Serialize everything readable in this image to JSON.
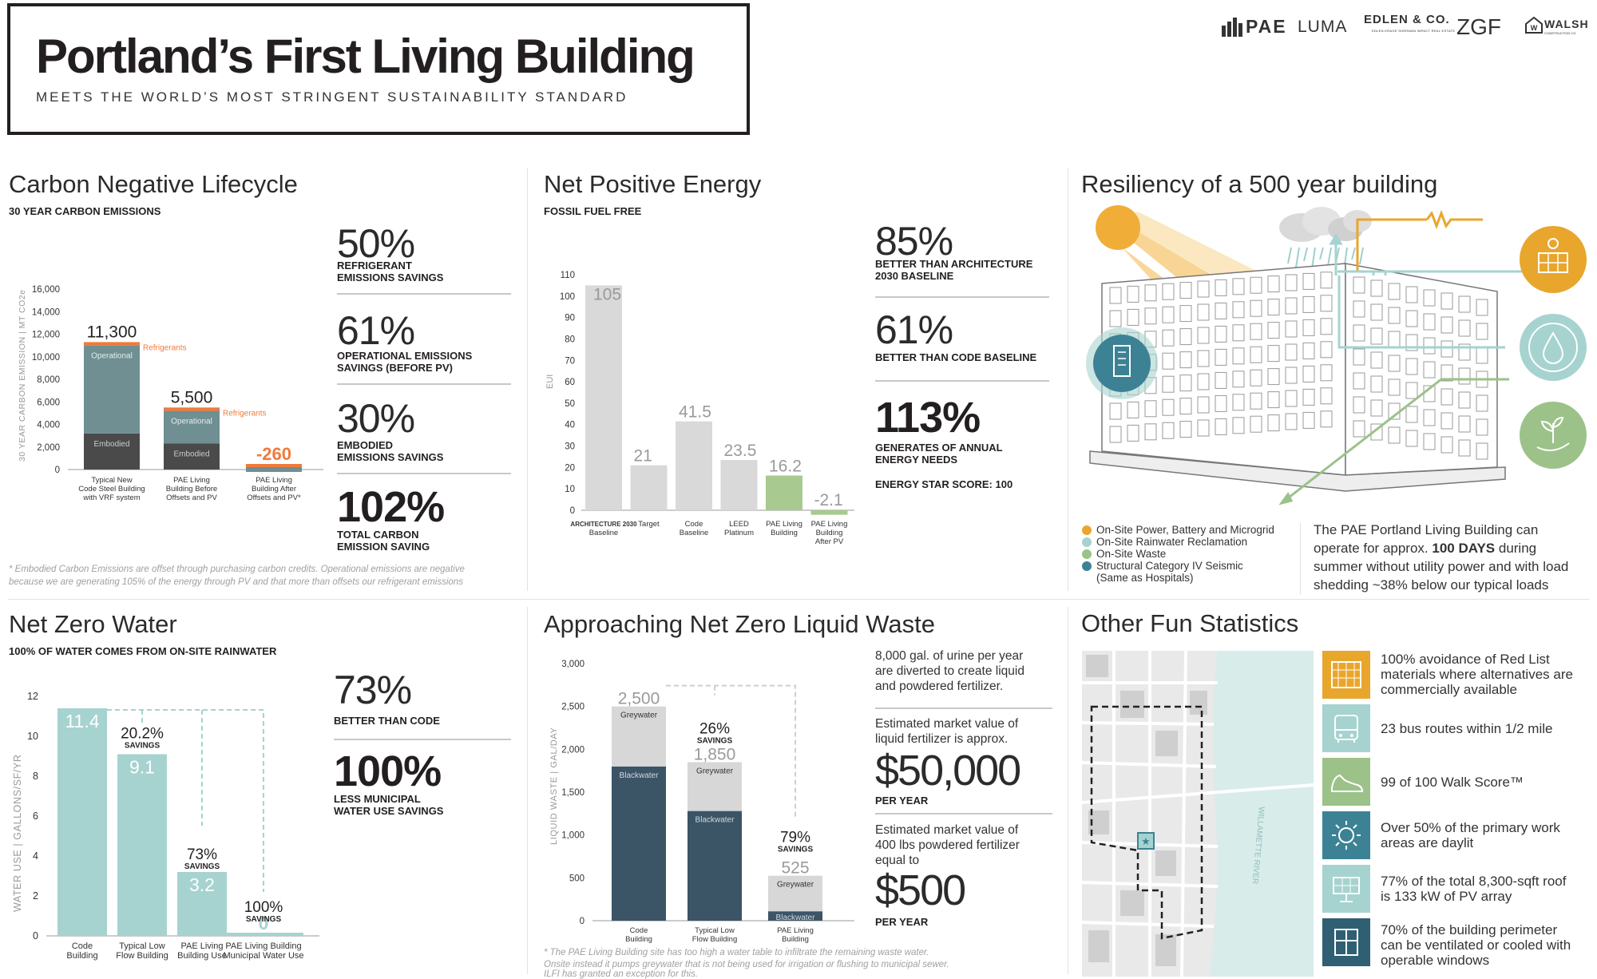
{
  "header": {
    "title": "Portland’s First Living Building",
    "subtitle": "MEETS THE WORLD’S MOST STRINGENT SUSTAINABILITY STANDARD",
    "logos": [
      "PAE",
      "LUMA",
      "EDLEN & CO.",
      "EDLEN KRAGE SHERMAN IMPACT REAL ESTATE",
      "ZGF",
      "WALSH",
      "CONSTRUCTION CO."
    ]
  },
  "carbon": {
    "title": "Carbon Negative Lifecycle",
    "subtitle": "30 YEAR CARBON EMISSIONS",
    "stats": [
      {
        "value": "50%",
        "label": [
          "REFRIGERANT",
          "EMISSIONS SAVINGS"
        ]
      },
      {
        "value": "61%",
        "label": [
          "OPERATIONAL EMISSIONS",
          "SAVINGS (BEFORE PV)"
        ]
      },
      {
        "value": "30%",
        "label": [
          "EMBODIED",
          "EMISSIONS SAVINGS"
        ]
      },
      {
        "value": "102%",
        "label": [
          "TOTAL CARBON",
          "EMISSION SAVING"
        ]
      }
    ],
    "note": [
      "* Embodied Carbon Emissions are offset through purchasing carbon credits. Operational emissions are negative",
      "because we are generating 105% of the energy through PV and that more than offsets our refrigerant emissions"
    ]
  },
  "energy": {
    "title": "Net Positive Energy",
    "subtitle": "FOSSIL FUEL FREE",
    "stats": [
      {
        "value": "85%",
        "label": [
          "BETTER THAN ARCHITECTURE",
          "2030 BASELINE"
        ]
      },
      {
        "value": "61%",
        "label": [
          "BETTER THAN CODE BASELINE"
        ]
      },
      {
        "value": "113%",
        "label": [
          "GENERATES OF ANNUAL",
          "ENERGY NEEDS"
        ]
      }
    ],
    "extra": "ENERGY STAR SCORE: 100"
  },
  "resiliency": {
    "title": "Resiliency of a 500 year building",
    "legend": [
      {
        "label": "On-Site Power, Battery and Microgrid",
        "color": "#e8a62d"
      },
      {
        "label": "On-Site Rainwater Reclamation",
        "color": "#a6d3cf"
      },
      {
        "label": "On-Site Waste",
        "color": "#9cc28a"
      },
      {
        "label": "Structural Category IV Seismic",
        "label2": "(Same as Hospitals)",
        "color": "#3c8294"
      }
    ],
    "paragraph": [
      "The PAE Portland Living Building can",
      "operate for approx. ",
      "100 DAYS",
      " during",
      "summer without utility power and with load",
      "shedding ~38% below our typical loads"
    ]
  },
  "water": {
    "title": "Net Zero Water",
    "subtitle": "100% OF WATER COMES FROM ON-SITE RAINWATER",
    "stats": [
      {
        "value": "73%",
        "label": [
          "BETTER THAN CODE"
        ]
      },
      {
        "value": "100%",
        "label": [
          "LESS MUNICIPAL",
          "WATER USE SAVINGS"
        ]
      }
    ]
  },
  "waste": {
    "title": "Approaching Net Zero Liquid Waste",
    "side": [
      {
        "text": [
          "8,000 gal. of urine per year",
          "are diverted to create liquid",
          "and powdered fertilizer."
        ]
      },
      {
        "text": [
          "Estimated market value of",
          "liquid fertilizer is approx."
        ],
        "money": "$50,000",
        "per": "PER YEAR"
      },
      {
        "text": [
          "Estimated market value of",
          "400 lbs powdered fertilizer",
          "equal to"
        ],
        "money": "$500",
        "per": "PER YEAR"
      }
    ],
    "note": [
      "* The PAE Living Building site has too high a water table to infiltrate the remaining waste water.",
      "Onsite instead it pumps greywater that is not being used for irrigation or flushing to municipal sewer.",
      "ILFI has granted an exception for this."
    ]
  },
  "fun": {
    "title": "Other Fun Statistics",
    "river_label": "WILLAMETTE RIVER",
    "items": [
      {
        "icon": "building-grid-icon",
        "color": "#e8a62d",
        "text": [
          "100% avoidance of Red List",
          "materials where alternatives are",
          "commercially available"
        ]
      },
      {
        "icon": "bus-icon",
        "color": "#a6d3cf",
        "text": [
          "23 bus routes within 1/2 mile"
        ]
      },
      {
        "icon": "shoe-icon",
        "color": "#9cc28a",
        "text": [
          "99 of 100 Walk Score™"
        ]
      },
      {
        "icon": "sun-icon",
        "color": "#3c8294",
        "text": [
          "Over 50% of the primary work",
          "areas are daylit"
        ]
      },
      {
        "icon": "solar-panel-icon",
        "color": "#a6d3cf",
        "text": [
          "77% of the total 8,300-sqft roof",
          "is 133 kW of PV array"
        ]
      },
      {
        "icon": "window-icon",
        "color": "#2f5f73",
        "text": [
          "70% of the building perimeter",
          "can be ventilated or cooled with",
          "operable windows"
        ]
      }
    ]
  },
  "chart_data": [
    {
      "type": "bar",
      "id": "carbon",
      "ylabel": "30 YEAR CARBON EMISSION | MT CO2e",
      "ylim": [
        0,
        16000
      ],
      "yticks": [
        0,
        2000,
        4000,
        6000,
        8000,
        10000,
        12000,
        14000,
        16000
      ],
      "ytick_labels": [
        "0",
        "2,000",
        "4,000",
        "6,000",
        "8,000",
        "10,000",
        "12,000",
        "14,000",
        "16,000"
      ],
      "categories": [
        [
          "Typical New",
          "Code Steel Building",
          "with VRF system"
        ],
        [
          "PAE Living",
          "Building Before",
          "Offsets and PV"
        ],
        [
          "PAE Living",
          "Building After",
          "Offsets and PV*"
        ]
      ],
      "series": [
        {
          "name": "Embodied",
          "values": [
            3200,
            2300,
            0
          ]
        },
        {
          "name": "Operational",
          "values": [
            7800,
            2900,
            -500
          ]
        },
        {
          "name": "Refrigerants",
          "values": [
            300,
            300,
            240
          ]
        }
      ],
      "totals": [
        "11,300",
        "5,500",
        "-260"
      ],
      "total_values": [
        11300,
        5500,
        -260
      ],
      "colors": {
        "embodied": "#4a4a4a",
        "operational": "#6f8f92",
        "refrigerants": "#f07a3a",
        "negative": "#f07a3a"
      }
    },
    {
      "type": "bar",
      "id": "energy",
      "ylabel": "EUI",
      "ylim": [
        0,
        110
      ],
      "yticks": [
        0,
        10,
        20,
        30,
        40,
        50,
        60,
        70,
        80,
        90,
        100,
        110
      ],
      "categories": [
        [
          "ARCHITECTURE 2030",
          "Baseline"
        ],
        [
          "Target"
        ],
        [
          "Code",
          "Baseline"
        ],
        [
          "LEED",
          "Platinum"
        ],
        [
          "PAE Living",
          "Building"
        ],
        [
          "PAE Living",
          "Building",
          "After PV"
        ]
      ],
      "values": [
        105,
        21,
        41.5,
        23.5,
        16.2,
        -2.1
      ],
      "labels": [
        "105",
        "21",
        "41.5",
        "23.5",
        "16.2",
        "-2.1"
      ],
      "colors": [
        "#d9d9d9",
        "#d9d9d9",
        "#d9d9d9",
        "#d9d9d9",
        "#a8c98f",
        "#a8c98f"
      ]
    },
    {
      "type": "bar",
      "id": "water",
      "ylabel": "WATER USE | GALLONS/SF/YR",
      "ylim": [
        0,
        12
      ],
      "yticks": [
        0,
        2,
        4,
        6,
        8,
        10,
        12
      ],
      "categories": [
        [
          "Code",
          "Building"
        ],
        [
          "Typical Low",
          "Flow Building"
        ],
        [
          "PAE Living",
          "Building Use"
        ],
        [
          "PAE Living Building",
          "Municipal Water Use"
        ]
      ],
      "values": [
        11.4,
        9.1,
        3.2,
        0
      ],
      "labels": [
        "11.4",
        "9.1",
        "3.2",
        "0"
      ],
      "savings": [
        "",
        "20.2%",
        "73%",
        "100%"
      ],
      "savings_word": "SAVINGS",
      "color": "#a6d3cf"
    },
    {
      "type": "bar",
      "id": "waste",
      "ylabel": "LIQUID WASTE | GAL/DAY",
      "ylim": [
        0,
        3000
      ],
      "yticks": [
        0,
        500,
        1000,
        1500,
        2000,
        2500,
        3000
      ],
      "ytick_labels": [
        "0",
        "500",
        "1,000",
        "1,500",
        "2,000",
        "2,500",
        "3,000"
      ],
      "categories": [
        [
          "Code",
          "Building"
        ],
        [
          "Typical Low",
          "Flow Building"
        ],
        [
          "PAE Living",
          "Building"
        ]
      ],
      "series": [
        {
          "name": "Blackwater",
          "values": [
            1800,
            1280,
            110
          ]
        },
        {
          "name": "Greywater",
          "values": [
            700,
            570,
            415
          ]
        }
      ],
      "totals": [
        "2,500",
        "1,850",
        "525"
      ],
      "total_values": [
        2500,
        1850,
        525
      ],
      "savings": [
        "",
        "26%",
        "79%"
      ],
      "savings_word": "SAVINGS",
      "colors": {
        "blackwater": "#3b5466",
        "greywater": "#d7d7d7"
      }
    }
  ]
}
